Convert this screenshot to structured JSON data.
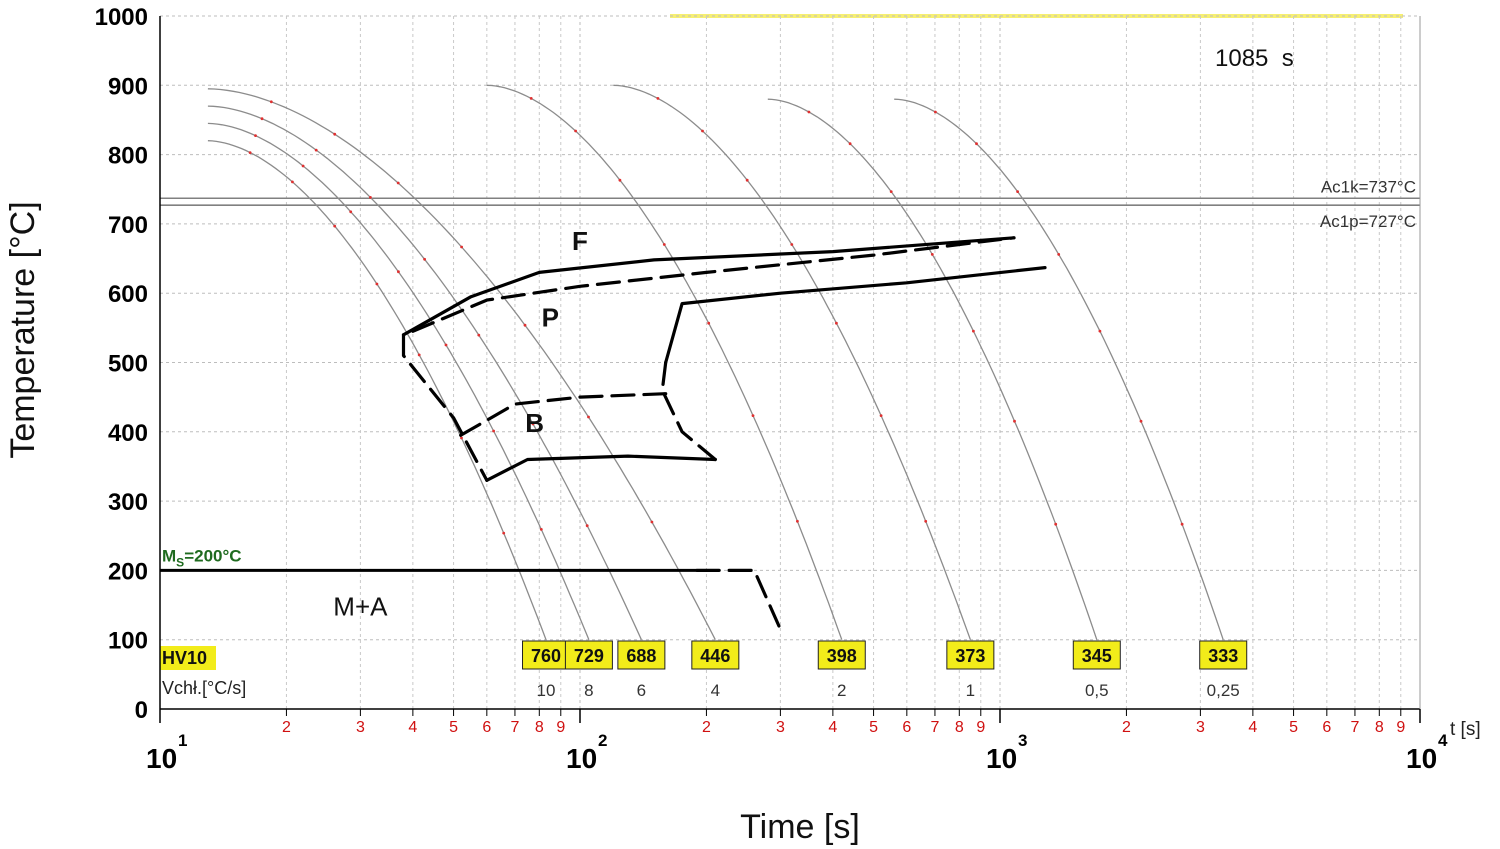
{
  "chart_data": {
    "type": "line",
    "title": "",
    "xlabel": "Time [s]",
    "ylabel": "Temperature [°C]",
    "x_scale": "log",
    "xlim": [
      10,
      10000
    ],
    "ylim": [
      0,
      1000
    ],
    "y_ticks": [
      "0",
      "100",
      "200",
      "300",
      "400",
      "500",
      "600",
      "700",
      "800",
      "900",
      "1000"
    ],
    "x_major_ticks": [
      {
        "base": "10",
        "exp": "1"
      },
      {
        "base": "10",
        "exp": "2"
      },
      {
        "base": "10",
        "exp": "3"
      },
      {
        "base": "10",
        "exp": "4"
      }
    ],
    "x_minor_ticks": [
      "2",
      "3",
      "4",
      "5",
      "6",
      "7",
      "8",
      "9"
    ],
    "x_axis_end_label": "t [s]",
    "grid": true,
    "annotation": "1085  s",
    "reference_lines": [
      {
        "label": "Ac1k=737°C",
        "y": 737
      },
      {
        "label": "Ac1p=727°C",
        "y": 727
      }
    ],
    "ms_line": {
      "label": "=200°C",
      "label_prefix": "M",
      "label_sub": "S",
      "y": 200
    },
    "regions": [
      "F",
      "P",
      "B",
      "M+A"
    ],
    "row_labels": {
      "hardness": "HV10",
      "rate": "Vchł.[°C/s]"
    },
    "cooling_curves": [
      {
        "rate": "10",
        "hardness": "760",
        "t_start": 13,
        "T_start": 820,
        "t_end": 83,
        "T_end": 100
      },
      {
        "rate": "8",
        "hardness": "729",
        "t_start": 13,
        "T_start": 845,
        "t_end": 105,
        "T_end": 100
      },
      {
        "rate": "6",
        "hardness": "688",
        "t_start": 13,
        "T_start": 870,
        "t_end": 140,
        "T_end": 100
      },
      {
        "rate": "4",
        "hardness": "446",
        "t_start": 13,
        "T_start": 895,
        "t_end": 210,
        "T_end": 100
      },
      {
        "rate": "2",
        "hardness": "398",
        "t_start": 60,
        "T_start": 900,
        "t_end": 420,
        "T_end": 100
      },
      {
        "rate": "1",
        "hardness": "373",
        "t_start": 120,
        "T_start": 900,
        "t_end": 850,
        "T_end": 100
      },
      {
        "rate": "0,5",
        "hardness": "345",
        "t_start": 280,
        "T_start": 880,
        "t_end": 1700,
        "T_end": 100
      },
      {
        "rate": "0,25",
        "hardness": "333",
        "t_start": 560,
        "T_start": 880,
        "t_end": 3400,
        "T_end": 100
      }
    ],
    "transformation_lines": {
      "ferrite_start": [
        [
          38,
          540
        ],
        [
          55,
          595
        ],
        [
          80,
          630
        ],
        [
          150,
          648
        ],
        [
          400,
          660
        ],
        [
          1080,
          680
        ]
      ],
      "ferrite_end": [
        [
          40,
          545
        ],
        [
          60,
          590
        ],
        [
          100,
          610
        ],
        [
          200,
          630
        ],
        [
          500,
          655
        ],
        [
          1080,
          680
        ]
      ],
      "pearlite_end": [
        [
          160,
          500
        ],
        [
          175,
          585
        ],
        [
          300,
          600
        ],
        [
          600,
          615
        ],
        [
          1280,
          637
        ]
      ],
      "pearlite_nose": [
        [
          160,
          500
        ],
        [
          157,
          460
        ],
        [
          175,
          400
        ],
        [
          210,
          360
        ]
      ],
      "bainite_start": [
        [
          38,
          540
        ],
        [
          38,
          510
        ],
        [
          50,
          420
        ],
        [
          60,
          330
        ]
      ],
      "bainite_upper": [
        [
          52,
          395
        ],
        [
          70,
          440
        ],
        [
          100,
          450
        ],
        [
          160,
          455
        ]
      ],
      "bainite_lower": [
        [
          60,
          330
        ],
        [
          75,
          360
        ],
        [
          130,
          365
        ],
        [
          210,
          360
        ]
      ],
      "ms_extension": [
        [
          190,
          200
        ],
        [
          260,
          200
        ],
        [
          300,
          115
        ]
      ]
    }
  }
}
